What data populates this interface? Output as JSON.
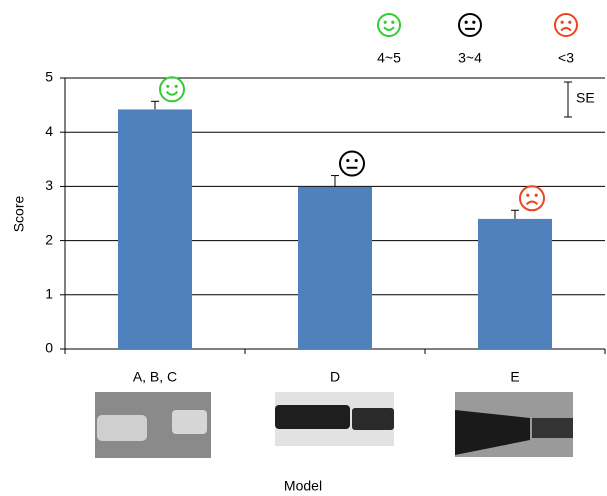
{
  "chart_data": {
    "type": "bar",
    "ylabel": "Score",
    "xlabel": "Model",
    "categories": [
      "A, B, C",
      "D",
      "E"
    ],
    "values": [
      4.42,
      2.99,
      2.4
    ],
    "errors": [
      0.15,
      0.21,
      0.16
    ],
    "color": "#4f81bd",
    "ylim": [
      0,
      5
    ],
    "yticks": [
      0,
      1,
      2,
      3,
      4,
      5
    ],
    "grid": true,
    "legend": [
      {
        "label": "4~5",
        "color": "#33cc33"
      },
      {
        "label": "3~4",
        "color": "#000000"
      },
      {
        "label": "<3",
        "color": "#ee4422"
      }
    ],
    "annotation": "SE"
  }
}
